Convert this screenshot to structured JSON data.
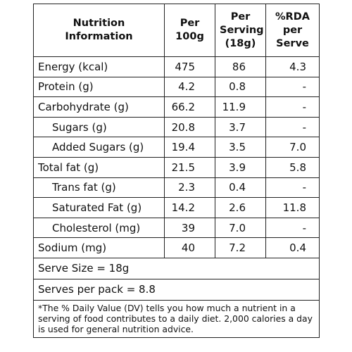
{
  "table": {
    "header": [
      "Nutrition\nInformation",
      "Per\n100g",
      "Per\nServing\n(18g)",
      "%RDA\nper\nServe"
    ],
    "rows": [
      [
        "Energy (kcal)",
        "475",
        "86",
        "4.3"
      ],
      [
        "Protein (g)",
        "4.2",
        "0.8",
        "-"
      ],
      [
        "Carbohydrate (g)",
        "66.2",
        "11.9",
        "-"
      ],
      [
        "Sugars (g)",
        "20.8",
        "3.7",
        "-"
      ],
      [
        "Added Sugars (g)",
        "19.4",
        "3.5",
        "7.0"
      ],
      [
        "Total fat (g)",
        "21.5",
        "3.9",
        "5.8"
      ],
      [
        "Trans fat (g)",
        "2.3",
        "0.4",
        "-"
      ],
      [
        "Saturated Fat (g)",
        "14.2",
        "2.6",
        "11.8"
      ],
      [
        "Cholesterol (mg)",
        "39",
        "7.0",
        "-"
      ],
      [
        "Sodium (mg)",
        "40",
        "7.2",
        "0.4"
      ]
    ],
    "serve_size": "Serve Size = 18g",
    "serves_per_pack": "Serves per pack = 8.8",
    "footnote": "*The % Daily Value (DV) tells you how much a nutrient in a serving of food contributes to a daily diet. 2,000 calories a day is used for general nutrition advice."
  }
}
